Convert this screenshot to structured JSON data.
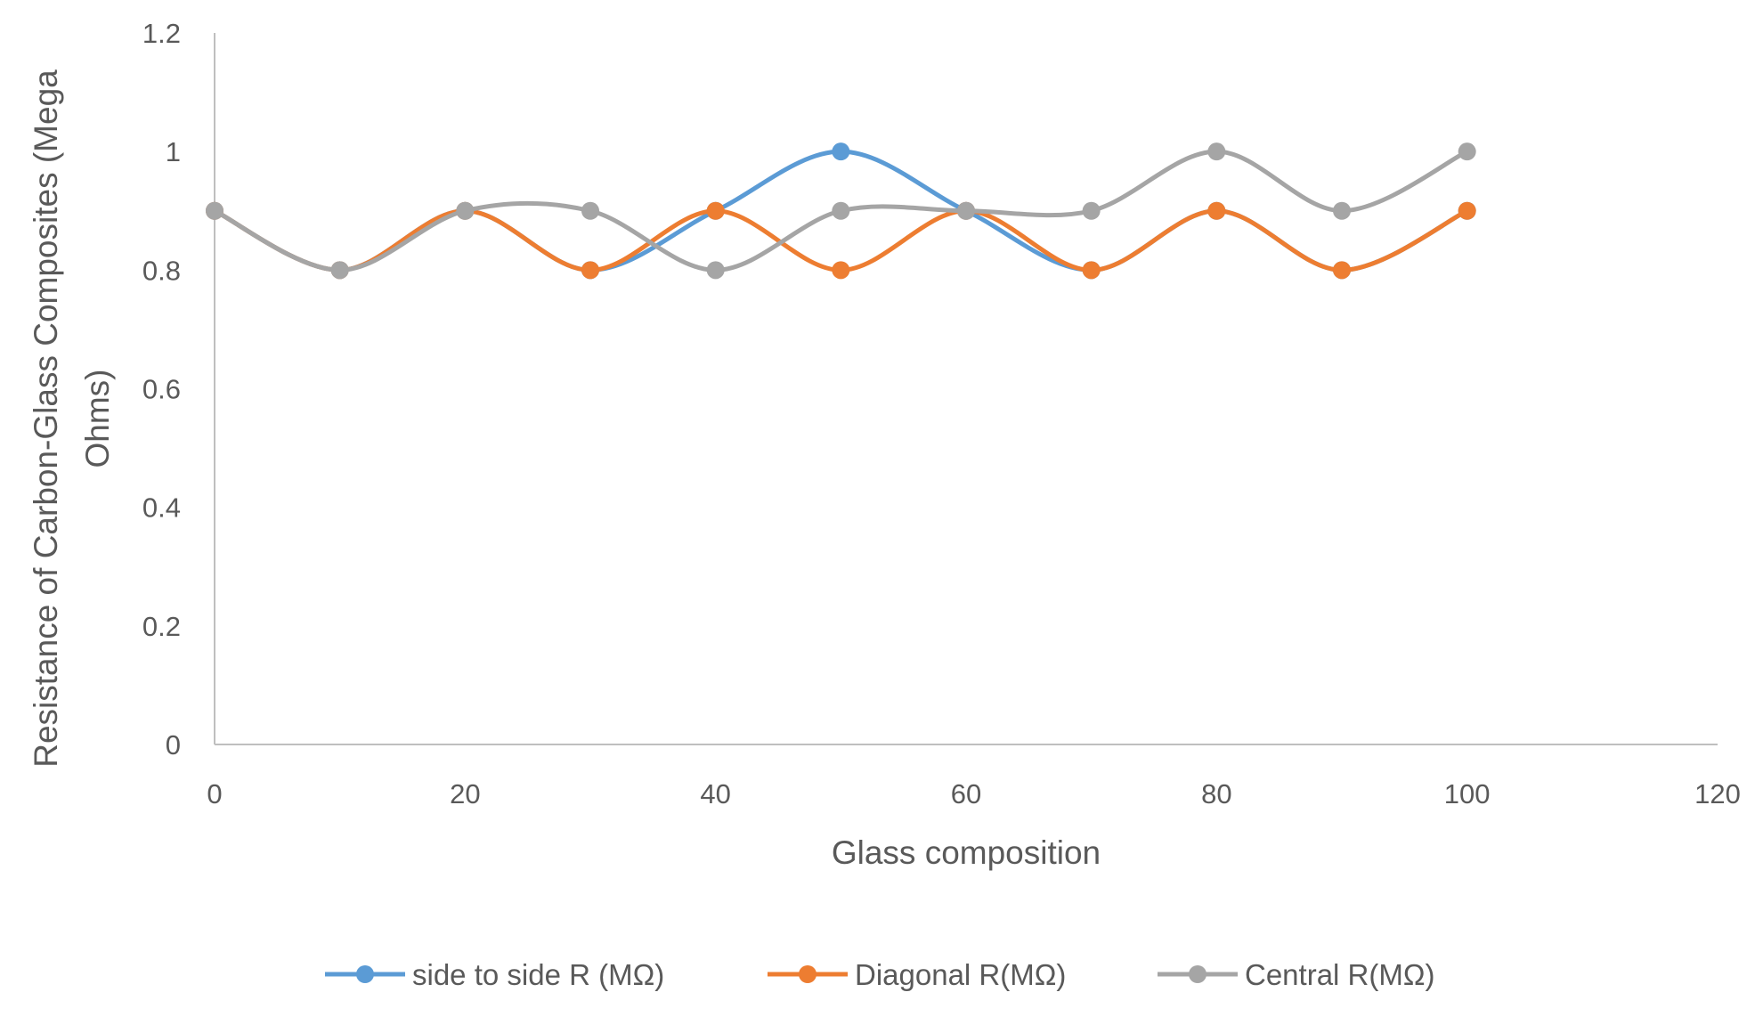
{
  "chart_data": {
    "type": "line",
    "title": "",
    "xlabel": "Glass composition",
    "ylabel_lines": [
      "Resistance of Carbon-Glass Composites (Mega",
      "Ohms)"
    ],
    "x": [
      0,
      10,
      20,
      30,
      40,
      50,
      60,
      70,
      80,
      90,
      100
    ],
    "xlim": [
      0,
      120
    ],
    "ylim": [
      0,
      1.2
    ],
    "xticks": [
      "0",
      "20",
      "40",
      "60",
      "80",
      "100",
      "120"
    ],
    "yticks": [
      "0",
      "0.2",
      "0.4",
      "0.6",
      "0.8",
      "1",
      "1.2"
    ],
    "grid": false,
    "smooth": true,
    "legend_position": "bottom",
    "series": [
      {
        "name": "side  to side R (MΩ)",
        "color": "#5B9BD5",
        "values": [
          0.9,
          0.8,
          0.9,
          0.8,
          0.9,
          1.0,
          0.9,
          0.8,
          0.9,
          0.8,
          0.9
        ]
      },
      {
        "name": "Diagonal R(MΩ)",
        "color": "#ED7D31",
        "values": [
          0.9,
          0.8,
          0.9,
          0.8,
          0.9,
          0.8,
          0.9,
          0.8,
          0.9,
          0.8,
          0.9
        ]
      },
      {
        "name": "Central R(MΩ)",
        "color": "#A5A5A5",
        "values": [
          0.9,
          0.8,
          0.9,
          0.9,
          0.8,
          0.9,
          0.9,
          0.9,
          1.0,
          0.9,
          1.0
        ]
      }
    ]
  }
}
